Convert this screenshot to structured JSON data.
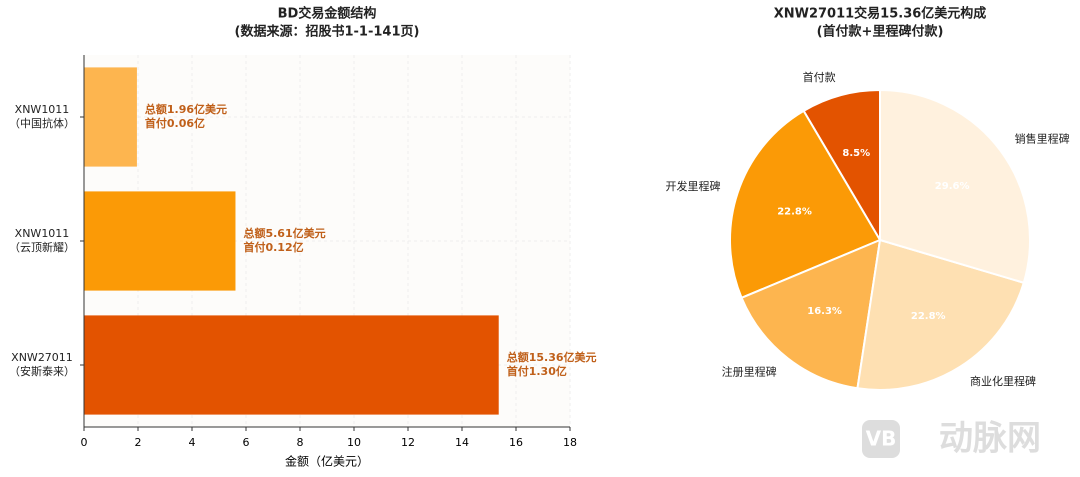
{
  "chart_data": [
    {
      "type": "hbar",
      "title": "BD交易金额结构",
      "subtitle": "(数据来源：招股书1-1-141页)",
      "categories": [
        "XNW1011\n（中国抗体）",
        "XNW1011\n（云顶新耀）",
        "XNW27011\n（安斯泰来）"
      ],
      "values": [
        1.96,
        5.61,
        15.36
      ],
      "value_labels": [
        "总额1.96亿美元",
        "总额5.61亿美元",
        "总额15.36亿美元"
      ],
      "upfront_labels": [
        "首付0.06亿",
        "首付0.12亿",
        "首付1.30亿"
      ],
      "colors": [
        "#fdb54f",
        "#fb9a06",
        "#e35300"
      ],
      "xlabel": "金额（亿美元）",
      "xlim": [
        0,
        18
      ],
      "xticks": [
        0,
        2,
        4,
        6,
        8,
        10,
        12,
        14,
        16,
        18
      ],
      "grid": true
    },
    {
      "type": "pie",
      "title": "XNW27011交易15.36亿美元构成",
      "subtitle": "(首付款+里程碑付款)",
      "categories": [
        "首付款",
        "开发里程碑",
        "注册里程碑",
        "商业化里程碑",
        "销售里程碑"
      ],
      "values": [
        8.5,
        22.8,
        16.3,
        22.8,
        29.6
      ],
      "value_labels": [
        "8.5%",
        "22.8%",
        "16.3%",
        "22.8%",
        "29.6%"
      ],
      "colors": [
        "#e35300",
        "#fb9a06",
        "#fdb54f",
        "#fee0b2",
        "#fff1de"
      ]
    }
  ],
  "watermark": {
    "logo": "VB",
    "text": "动脉网"
  }
}
